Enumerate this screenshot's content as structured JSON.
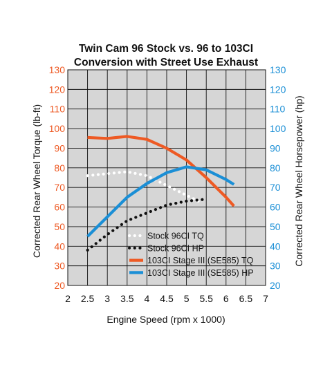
{
  "colors": {
    "orange": "#ee5a24",
    "blue": "#1b8fd6",
    "plot_bg": "#d6d6d6",
    "grid": "#111111",
    "text": "#111111"
  },
  "chart_data": {
    "type": "line",
    "title_lines": [
      "Twin Cam 96 Stock vs. 96 to 103CI",
      "Conversion with Street Use Exhaust"
    ],
    "xlabel": "Engine Speed (rpm x 1000)",
    "ylabel_left": "Corrected Rear Wheel Torque (lb-ft)",
    "ylabel_right": "Corrected Rear Wheel Horsepower (hp)",
    "xlim": [
      2,
      7
    ],
    "ylim": [
      20,
      130
    ],
    "x_ticks": [
      "2",
      "2.5",
      "3",
      "3.5",
      "4",
      "4.5",
      "5",
      "5.5",
      "6",
      "6.5",
      "7"
    ],
    "y_ticks": [
      "20",
      "30",
      "40",
      "50",
      "60",
      "70",
      "80",
      "90",
      "100",
      "110",
      "120",
      "130"
    ],
    "grid": true,
    "legend_position": "bottom-center",
    "series": [
      {
        "name": "Stock 96CI TQ",
        "axis": "left",
        "color": "#ffffff",
        "style": "dotted",
        "x": [
          2.5,
          3.0,
          3.5,
          4.0,
          4.5,
          5.0,
          5.4
        ],
        "y": [
          76,
          77,
          78,
          76,
          71,
          66,
          62
        ]
      },
      {
        "name": "Stock 96CI HP",
        "axis": "right",
        "color": "#111111",
        "style": "dotted",
        "x": [
          2.5,
          3.0,
          3.5,
          4.0,
          4.5,
          5.0,
          5.5
        ],
        "y": [
          38,
          46,
          53,
          57,
          61,
          63,
          64
        ]
      },
      {
        "name": "103CI Stage III (SE585) TQ",
        "axis": "left",
        "color": "#ee5a24",
        "style": "solid",
        "x": [
          2.5,
          3.0,
          3.5,
          4.0,
          4.5,
          5.0,
          5.5,
          6.0,
          6.2
        ],
        "y": [
          95.5,
          95,
          96,
          94.5,
          90,
          84,
          75,
          65,
          60.5
        ]
      },
      {
        "name": "103CI Stage III (SE585) HP",
        "axis": "right",
        "color": "#1b8fd6",
        "style": "solid",
        "x": [
          2.5,
          3.0,
          3.5,
          4.0,
          4.5,
          5.0,
          5.5,
          6.0,
          6.2
        ],
        "y": [
          45,
          55,
          65,
          72,
          77.5,
          80.5,
          79,
          74,
          71.5
        ]
      }
    ]
  }
}
